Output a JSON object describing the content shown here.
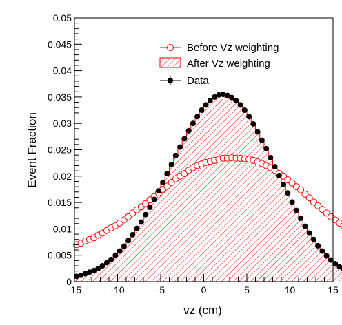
{
  "chart_data": {
    "type": "histogram",
    "xlabel": "vz (cm)",
    "ylabel": "Event Fraction",
    "xlim": [
      -15,
      15
    ],
    "ylim": [
      0,
      0.05
    ],
    "x_ticks": [
      "-15",
      "-10",
      "-5",
      "0",
      "5",
      "10",
      "15"
    ],
    "y_ticks": [
      "0",
      "0.005",
      "0.01",
      "0.015",
      "0.02",
      "0.025",
      "0.03",
      "0.035",
      "0.04",
      "0.045",
      "0.05"
    ],
    "grid": false,
    "legend_placement": "top-right",
    "bin_width": 0.5,
    "bin_centers_start": -14.75,
    "series": [
      {
        "name": "Before Vz weighting",
        "style": "open-circle",
        "color": "#ff0000",
        "values": [
          0.007,
          0.0073,
          0.0077,
          0.008,
          0.0083,
          0.0088,
          0.0092,
          0.0097,
          0.0102,
          0.0106,
          0.0111,
          0.0117,
          0.0123,
          0.013,
          0.0136,
          0.0142,
          0.0148,
          0.0155,
          0.0161,
          0.0168,
          0.0175,
          0.0181,
          0.0188,
          0.0195,
          0.02,
          0.0205,
          0.0211,
          0.0216,
          0.022,
          0.0223,
          0.0226,
          0.0228,
          0.023,
          0.0232,
          0.0234,
          0.0234,
          0.0235,
          0.0234,
          0.0234,
          0.0233,
          0.0232,
          0.023,
          0.0227,
          0.0224,
          0.022,
          0.0216,
          0.0211,
          0.0205,
          0.02,
          0.0193,
          0.0187,
          0.018,
          0.0174,
          0.0166,
          0.0159,
          0.0151,
          0.0144,
          0.0137,
          0.013,
          0.0123,
          0.0117,
          0.0111,
          0.0106,
          0.01,
          0.0095,
          0.009,
          0.0085,
          0.008
        ]
      },
      {
        "name": "After Vz weighting",
        "style": "hatched-histogram",
        "color": "#ff0000",
        "values": [
          0.001,
          0.0012,
          0.0015,
          0.0018,
          0.0021,
          0.0025,
          0.003,
          0.0036,
          0.0042,
          0.005,
          0.0058,
          0.0067,
          0.0078,
          0.0089,
          0.0101,
          0.0113,
          0.0127,
          0.0141,
          0.0155,
          0.0171,
          0.0187,
          0.0204,
          0.0221,
          0.0237,
          0.0254,
          0.027,
          0.0284,
          0.0299,
          0.0312,
          0.0323,
          0.0334,
          0.0342,
          0.0349,
          0.0352,
          0.0353,
          0.0352,
          0.0347,
          0.0341,
          0.0333,
          0.0324,
          0.0312,
          0.0297,
          0.0282,
          0.0266,
          0.025,
          0.0234,
          0.0216,
          0.02,
          0.0183,
          0.0167,
          0.015,
          0.0134,
          0.0119,
          0.0104,
          0.0091,
          0.0079,
          0.0067,
          0.0057,
          0.0048,
          0.004,
          0.0033,
          0.0027,
          0.0022,
          0.0018,
          0.0015,
          0.0012,
          0.001,
          0.0008
        ]
      },
      {
        "name": "Data",
        "style": "filled-circle-errorbar",
        "color": "#000000",
        "values": [
          0.001,
          0.0012,
          0.0015,
          0.0018,
          0.0021,
          0.0025,
          0.003,
          0.0036,
          0.0042,
          0.005,
          0.0058,
          0.0067,
          0.0078,
          0.0089,
          0.0101,
          0.0113,
          0.0127,
          0.0141,
          0.0156,
          0.0172,
          0.0188,
          0.0205,
          0.0222,
          0.0239,
          0.0255,
          0.0271,
          0.0286,
          0.03,
          0.0313,
          0.0325,
          0.0335,
          0.0343,
          0.035,
          0.0354,
          0.0355,
          0.0353,
          0.0349,
          0.0343,
          0.0335,
          0.0325,
          0.0313,
          0.0299,
          0.0284,
          0.0268,
          0.0252,
          0.0235,
          0.0218,
          0.0201,
          0.0184,
          0.0168,
          0.0151,
          0.0135,
          0.012,
          0.0105,
          0.0092,
          0.008,
          0.0068,
          0.0058,
          0.0049,
          0.0041,
          0.0034,
          0.0028,
          0.0023,
          0.0019,
          0.0015,
          0.0012,
          0.001,
          0.0008
        ]
      }
    ]
  }
}
